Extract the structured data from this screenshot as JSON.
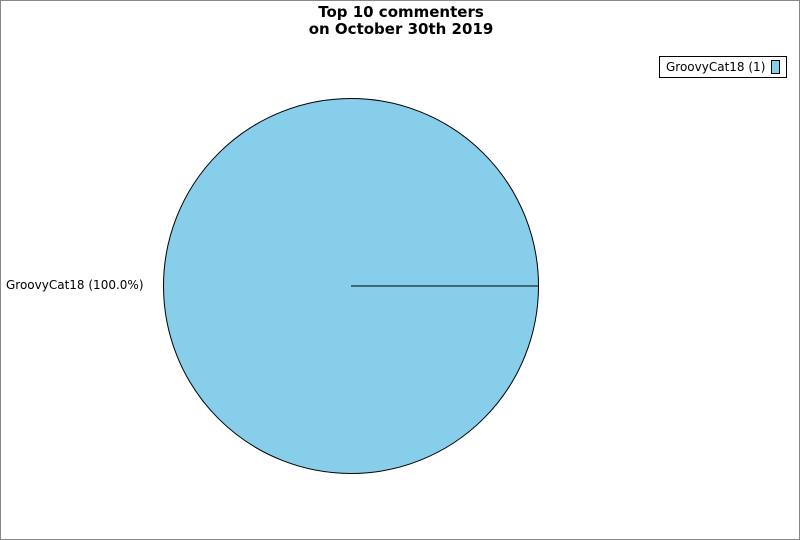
{
  "chart_data": {
    "type": "pie",
    "title_lines": [
      "Top 10 commenters",
      "on October 30th 2019"
    ],
    "slices": [
      {
        "name": "GroovyCat18",
        "value": 1,
        "percent_label": "GroovyCat18 (100.0%)",
        "legend_label": "GroovyCat18 (1)",
        "color": "#87ceeb"
      }
    ],
    "legend_placement": "top-right"
  }
}
